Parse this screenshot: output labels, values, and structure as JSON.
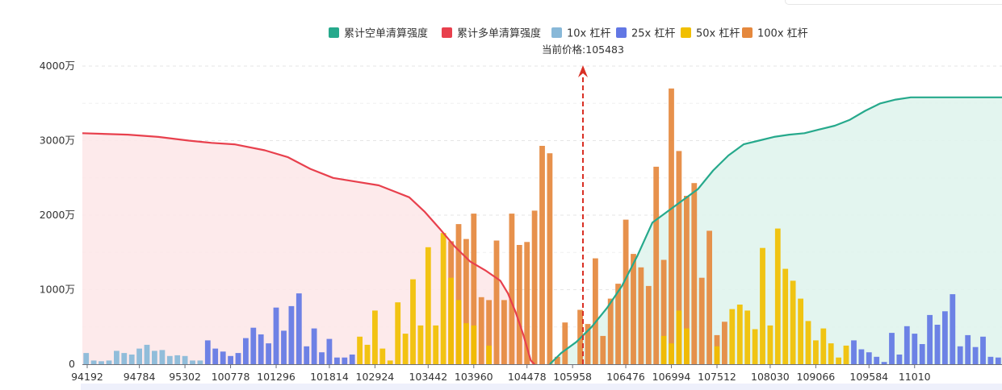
{
  "chart_data": {
    "type": "bar",
    "legend": [
      {
        "label": "累计空单清算强度",
        "color": "#26a98c"
      },
      {
        "label": "累计多单清算强度",
        "color": "#e8404d"
      },
      {
        "label": "10x 杠杆",
        "color": "#88b8d8"
      },
      {
        "label": "25x 杠杆",
        "color": "#6277e4"
      },
      {
        "label": "50x 杠杆",
        "color": "#f1bf00"
      },
      {
        "label": "100x 杠杆",
        "color": "#e5883d"
      }
    ],
    "legend_position": "top",
    "current_price_label": "当前价格:105483",
    "current_price_index": 60.5,
    "y_ticks": [
      "4000万",
      "3000万",
      "2000万",
      "1000万",
      "0"
    ],
    "y_tick_values": [
      4000,
      3000,
      2000,
      1000,
      0
    ],
    "ylim": [
      0,
      4000
    ],
    "y_unit": "万",
    "x_ticks": [
      {
        "i": 0,
        "label": "94192"
      },
      {
        "i": 7,
        "label": "94784"
      },
      {
        "i": 13,
        "label": "95302"
      },
      {
        "i": 19,
        "label": "100778"
      },
      {
        "i": 25,
        "label": "101296"
      },
      {
        "i": 32,
        "label": "101814"
      },
      {
        "i": 38,
        "label": "102924"
      },
      {
        "i": 45,
        "label": "103442"
      },
      {
        "i": 51,
        "label": "103960"
      },
      {
        "i": 58,
        "label": "104478"
      },
      {
        "i": 64,
        "label": "105958"
      },
      {
        "i": 71,
        "label": "106476"
      },
      {
        "i": 77,
        "label": "106994"
      },
      {
        "i": 83,
        "label": "107512"
      },
      {
        "i": 90,
        "label": "108030"
      },
      {
        "i": 96,
        "label": "109066"
      },
      {
        "i": 103,
        "label": "109584"
      },
      {
        "i": 109,
        "label": "11010"
      }
    ],
    "bars": [
      {
        "v": 150,
        "lev": "10x"
      },
      {
        "v": 50,
        "lev": "10x"
      },
      {
        "v": 40,
        "lev": "10x"
      },
      {
        "v": 50,
        "lev": "10x"
      },
      {
        "v": 180,
        "lev": "10x"
      },
      {
        "v": 150,
        "lev": "10x"
      },
      {
        "v": 130,
        "lev": "10x"
      },
      {
        "v": 210,
        "lev": "10x"
      },
      {
        "v": 260,
        "lev": "10x"
      },
      {
        "v": 180,
        "lev": "10x"
      },
      {
        "v": 190,
        "lev": "10x"
      },
      {
        "v": 110,
        "lev": "10x"
      },
      {
        "v": 120,
        "lev": "10x"
      },
      {
        "v": 110,
        "lev": "10x"
      },
      {
        "v": 50,
        "lev": "10x"
      },
      {
        "v": 50,
        "lev": "10x"
      },
      {
        "v": 320,
        "lev": "25x"
      },
      {
        "v": 210,
        "lev": "25x"
      },
      {
        "v": 170,
        "lev": "25x"
      },
      {
        "v": 110,
        "lev": "25x"
      },
      {
        "v": 150,
        "lev": "25x"
      },
      {
        "v": 350,
        "lev": "25x"
      },
      {
        "v": 490,
        "lev": "25x"
      },
      {
        "v": 400,
        "lev": "25x"
      },
      {
        "v": 280,
        "lev": "25x"
      },
      {
        "v": 760,
        "lev": "25x"
      },
      {
        "v": 450,
        "lev": "25x"
      },
      {
        "v": 780,
        "lev": "25x"
      },
      {
        "v": 950,
        "lev": "25x"
      },
      {
        "v": 240,
        "lev": "25x"
      },
      {
        "v": 480,
        "lev": "25x"
      },
      {
        "v": 160,
        "lev": "25x"
      },
      {
        "v": 340,
        "lev": "25x"
      },
      {
        "v": 90,
        "lev": "25x"
      },
      {
        "v": 90,
        "lev": "25x"
      },
      {
        "v": 130,
        "lev": "25x"
      },
      {
        "v": 370,
        "lev": "50x"
      },
      {
        "v": 260,
        "lev": "50x"
      },
      {
        "v": 720,
        "lev": "50x"
      },
      {
        "v": 210,
        "lev": "50x"
      },
      {
        "v": 50,
        "lev": "50x"
      },
      {
        "v": 830,
        "lev": "50x"
      },
      {
        "v": 410,
        "lev": "50x"
      },
      {
        "v": 1140,
        "lev": "50x"
      },
      {
        "v": 520,
        "lev": "50x"
      },
      {
        "v": 1570,
        "lev": "50x"
      },
      {
        "v": 520,
        "lev": "50x"
      },
      {
        "v": 1760,
        "lev": "50x"
      },
      {
        "v": 1650,
        "lev": "100x"
      },
      {
        "v": 1880,
        "lev": "100x"
      },
      {
        "v": 1680,
        "lev": "100x"
      },
      {
        "v": 2020,
        "lev": "100x"
      },
      {
        "v": 900,
        "lev": "100x"
      },
      {
        "v": 860,
        "lev": "100x"
      },
      {
        "v": 1660,
        "lev": "100x"
      },
      {
        "v": 860,
        "lev": "100x"
      },
      {
        "v": 2020,
        "lev": "100x"
      },
      {
        "v": 1600,
        "lev": "100x"
      },
      {
        "v": 1640,
        "lev": "100x"
      },
      {
        "v": 2060,
        "lev": "100x"
      },
      {
        "v": 2930,
        "lev": "100x"
      },
      {
        "v": 2830,
        "lev": "100x"
      },
      {
        "v": 100,
        "lev": "100x"
      },
      {
        "v": 560,
        "lev": "100x"
      },
      {
        "v": 0,
        "lev": "100x"
      },
      {
        "v": 730,
        "lev": "100x"
      },
      {
        "v": 540,
        "lev": "100x"
      },
      {
        "v": 1420,
        "lev": "100x"
      },
      {
        "v": 380,
        "lev": "100x"
      },
      {
        "v": 880,
        "lev": "100x"
      },
      {
        "v": 1080,
        "lev": "100x"
      },
      {
        "v": 1940,
        "lev": "100x"
      },
      {
        "v": 1480,
        "lev": "100x"
      },
      {
        "v": 1300,
        "lev": "100x"
      },
      {
        "v": 1050,
        "lev": "100x"
      },
      {
        "v": 2650,
        "lev": "100x"
      },
      {
        "v": 1400,
        "lev": "100x"
      },
      {
        "v": 3700,
        "lev": "100x"
      },
      {
        "v": 2860,
        "lev": "100x"
      },
      {
        "v": 2260,
        "lev": "100x"
      },
      {
        "v": 2430,
        "lev": "100x"
      },
      {
        "v": 1160,
        "lev": "100x"
      },
      {
        "v": 1790,
        "lev": "100x"
      },
      {
        "v": 390,
        "lev": "100x"
      },
      {
        "v": 570,
        "lev": "100x"
      },
      {
        "v": 740,
        "lev": "50x"
      },
      {
        "v": 800,
        "lev": "50x"
      },
      {
        "v": 720,
        "lev": "50x"
      },
      {
        "v": 470,
        "lev": "50x"
      },
      {
        "v": 1560,
        "lev": "50x"
      },
      {
        "v": 520,
        "lev": "50x"
      },
      {
        "v": 1820,
        "lev": "50x"
      },
      {
        "v": 1280,
        "lev": "50x"
      },
      {
        "v": 1120,
        "lev": "50x"
      },
      {
        "v": 880,
        "lev": "50x"
      },
      {
        "v": 580,
        "lev": "50x"
      },
      {
        "v": 320,
        "lev": "50x"
      },
      {
        "v": 480,
        "lev": "50x"
      },
      {
        "v": 280,
        "lev": "50x"
      },
      {
        "v": 90,
        "lev": "50x"
      },
      {
        "v": 250,
        "lev": "50x"
      },
      {
        "v": 320,
        "lev": "25x"
      },
      {
        "v": 200,
        "lev": "25x"
      },
      {
        "v": 160,
        "lev": "25x"
      },
      {
        "v": 100,
        "lev": "25x"
      },
      {
        "v": 30,
        "lev": "25x"
      },
      {
        "v": 420,
        "lev": "25x"
      },
      {
        "v": 130,
        "lev": "25x"
      },
      {
        "v": 510,
        "lev": "25x"
      },
      {
        "v": 410,
        "lev": "25x"
      },
      {
        "v": 270,
        "lev": "25x"
      },
      {
        "v": 660,
        "lev": "25x"
      },
      {
        "v": 530,
        "lev": "25x"
      },
      {
        "v": 710,
        "lev": "25x"
      },
      {
        "v": 940,
        "lev": "25x"
      },
      {
        "v": 240,
        "lev": "25x"
      },
      {
        "v": 390,
        "lev": "25x"
      },
      {
        "v": 230,
        "lev": "25x"
      },
      {
        "v": 370,
        "lev": "25x"
      },
      {
        "v": 100,
        "lev": "25x"
      },
      {
        "v": 90,
        "lev": "25x"
      }
    ],
    "overlay_bars": [
      {
        "i": 48,
        "v": 1160,
        "lev": "50x"
      },
      {
        "i": 49,
        "v": 860,
        "lev": "50x"
      },
      {
        "i": 50,
        "v": 550,
        "lev": "50x"
      },
      {
        "i": 51,
        "v": 520,
        "lev": "50x"
      },
      {
        "i": 53,
        "v": 250,
        "lev": "50x"
      },
      {
        "i": 76,
        "v": 380,
        "lev": "50x"
      },
      {
        "i": 77,
        "v": 280,
        "lev": "50x"
      },
      {
        "i": 78,
        "v": 720,
        "lev": "50x"
      },
      {
        "i": 79,
        "v": 480,
        "lev": "50x"
      },
      {
        "i": 83,
        "v": 240,
        "lev": "50x"
      }
    ],
    "long_cumulative": {
      "name": "累计多单清算强度",
      "x": [
        0,
        6,
        10,
        14,
        17,
        20,
        24,
        27,
        30,
        33,
        36,
        39,
        41,
        43,
        45,
        47,
        49,
        51,
        53,
        55,
        56,
        57,
        58,
        59,
        59.5
      ],
      "y": [
        3100,
        3080,
        3050,
        3000,
        2970,
        2950,
        2870,
        2780,
        2620,
        2500,
        2450,
        2400,
        2320,
        2240,
        2050,
        1820,
        1580,
        1380,
        1260,
        1120,
        950,
        700,
        400,
        50,
        0
      ]
    },
    "short_cumulative": {
      "name": "累计空单清算强度",
      "x": [
        61.5,
        63,
        65,
        67,
        69,
        71,
        73,
        75,
        77,
        79,
        81,
        83,
        85,
        87,
        89,
        91,
        93,
        95,
        97,
        99,
        101,
        103,
        105,
        107,
        109
      ],
      "y": [
        0,
        150,
        300,
        500,
        750,
        1050,
        1450,
        1900,
        2050,
        2200,
        2350,
        2600,
        2800,
        2950,
        3000,
        3050,
        3080,
        3100,
        3150,
        3200,
        3280,
        3400,
        3500,
        3550,
        3580
      ]
    }
  }
}
